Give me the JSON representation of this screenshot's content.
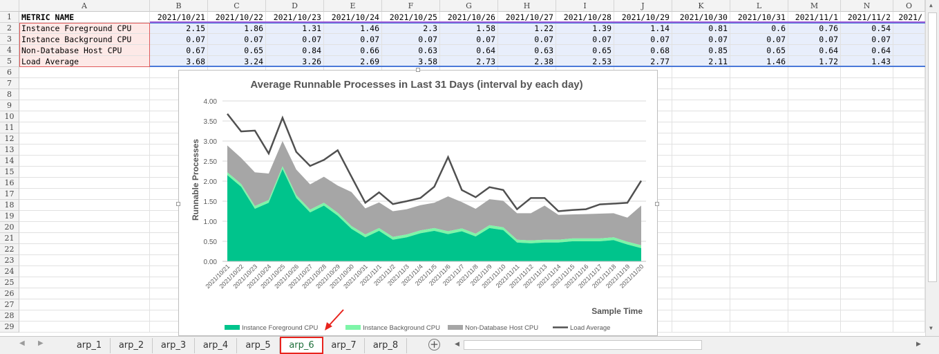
{
  "sheet": {
    "columns": [
      "A",
      "B",
      "C",
      "D",
      "E",
      "F",
      "G",
      "H",
      "I",
      "J",
      "K",
      "L",
      "M",
      "N",
      "O"
    ],
    "header_row": {
      "name": "METRIC NAME",
      "dates": [
        "2021/10/21",
        "2021/10/22",
        "2021/10/23",
        "2021/10/24",
        "2021/10/25",
        "2021/10/26",
        "2021/10/27",
        "2021/10/28",
        "2021/10/29",
        "2021/10/30",
        "2021/10/31",
        "2021/11/1",
        "2021/11/2",
        "2021/"
      ]
    },
    "rows": [
      {
        "name": "Instance Foreground CPU",
        "values": [
          "2.15",
          "1.86",
          "1.31",
          "1.46",
          "2.3",
          "1.58",
          "1.22",
          "1.39",
          "1.14",
          "0.81",
          "0.6",
          "0.76",
          "0.54",
          ""
        ]
      },
      {
        "name": "Instance Background CPU",
        "values": [
          "0.07",
          "0.07",
          "0.07",
          "0.07",
          "0.07",
          "0.07",
          "0.07",
          "0.07",
          "0.07",
          "0.07",
          "0.07",
          "0.07",
          "0.07",
          ""
        ]
      },
      {
        "name": "Non-Database Host CPU",
        "values": [
          "0.67",
          "0.65",
          "0.84",
          "0.66",
          "0.63",
          "0.64",
          "0.63",
          "0.65",
          "0.68",
          "0.85",
          "0.65",
          "0.64",
          "0.64",
          ""
        ]
      },
      {
        "name": "Load Average",
        "values": [
          "3.68",
          "3.24",
          "3.26",
          "2.69",
          "3.58",
          "2.73",
          "2.38",
          "2.53",
          "2.77",
          "2.11",
          "1.46",
          "1.72",
          "1.43",
          ""
        ]
      }
    ],
    "row_numbers": [
      "1",
      "2",
      "3",
      "4",
      "5",
      "6",
      "7",
      "8",
      "9",
      "10",
      "11",
      "12",
      "13",
      "14",
      "15",
      "16",
      "17",
      "18",
      "19",
      "20",
      "21",
      "22",
      "23",
      "24",
      "25",
      "26",
      "27",
      "28",
      "29"
    ]
  },
  "chart_data": {
    "type": "area",
    "title": "Average Runnable Processes in Last 31 Days (interval by each day)",
    "xlabel": "Sample Time",
    "ylabel": "Runnable Processes",
    "ylim": [
      0,
      4
    ],
    "yticks": [
      "0.00",
      "0.50",
      "1.00",
      "1.50",
      "2.00",
      "2.50",
      "3.00",
      "3.50",
      "4.00"
    ],
    "categories": [
      "2021/10/21",
      "2021/10/22",
      "2021/10/23",
      "2021/10/24",
      "2021/10/25",
      "2021/10/26",
      "2021/10/27",
      "2021/10/28",
      "2021/10/29",
      "2021/10/30",
      "2021/10/31",
      "2021/11/1",
      "2021/11/2",
      "2021/11/3",
      "2021/11/4",
      "2021/11/5",
      "2021/11/6",
      "2021/11/7",
      "2021/11/8",
      "2021/11/9",
      "2021/11/10",
      "2021/11/11",
      "2021/11/12",
      "2021/11/13",
      "2021/11/14",
      "2021/11/15",
      "2021/11/16",
      "2021/11/17",
      "2021/11/18",
      "2021/11/19",
      "2021/11/20"
    ],
    "series": [
      {
        "name": "Instance Foreground CPU",
        "kind": "area",
        "color": "#00c48c",
        "values": [
          2.15,
          1.86,
          1.31,
          1.46,
          2.3,
          1.58,
          1.22,
          1.39,
          1.14,
          0.81,
          0.6,
          0.76,
          0.54,
          0.6,
          0.7,
          0.76,
          0.68,
          0.75,
          0.62,
          0.83,
          0.78,
          0.47,
          0.45,
          0.47,
          0.47,
          0.5,
          0.5,
          0.5,
          0.53,
          0.42,
          0.33
        ]
      },
      {
        "name": "Instance Background CPU",
        "kind": "area",
        "color": "#7ef5a8",
        "values": [
          0.07,
          0.07,
          0.07,
          0.07,
          0.07,
          0.07,
          0.07,
          0.07,
          0.07,
          0.07,
          0.07,
          0.07,
          0.07,
          0.07,
          0.07,
          0.07,
          0.07,
          0.07,
          0.07,
          0.07,
          0.07,
          0.07,
          0.07,
          0.07,
          0.07,
          0.07,
          0.07,
          0.07,
          0.07,
          0.07,
          0.07
        ]
      },
      {
        "name": "Non-Database Host CPU",
        "kind": "area",
        "color": "#a6a6a6",
        "values": [
          0.67,
          0.65,
          0.84,
          0.66,
          0.63,
          0.64,
          0.63,
          0.65,
          0.68,
          0.85,
          0.65,
          0.64,
          0.64,
          0.63,
          0.63,
          0.63,
          0.87,
          0.66,
          0.62,
          0.65,
          0.66,
          0.66,
          0.68,
          0.85,
          0.62,
          0.6,
          0.61,
          0.62,
          0.6,
          0.6,
          0.99
        ]
      },
      {
        "name": "Load Average",
        "kind": "line",
        "color": "#505050",
        "values": [
          3.68,
          3.24,
          3.26,
          2.69,
          3.58,
          2.73,
          2.38,
          2.53,
          2.77,
          2.11,
          1.46,
          1.72,
          1.43,
          1.5,
          1.58,
          1.86,
          2.6,
          1.78,
          1.6,
          1.85,
          1.78,
          1.3,
          1.58,
          1.58,
          1.25,
          1.28,
          1.3,
          1.42,
          1.44,
          1.46,
          2.01
        ]
      }
    ],
    "legend_position": "bottom",
    "grid": true
  },
  "tabs": [
    "arp_1",
    "arp_2",
    "arp_3",
    "arp_4",
    "arp_5",
    "arp_6",
    "arp_7",
    "arp_8"
  ],
  "active_tab": "arp_6",
  "colors": {
    "accent_red": "#e8231d",
    "active_tab_text": "#1f6f3a"
  }
}
